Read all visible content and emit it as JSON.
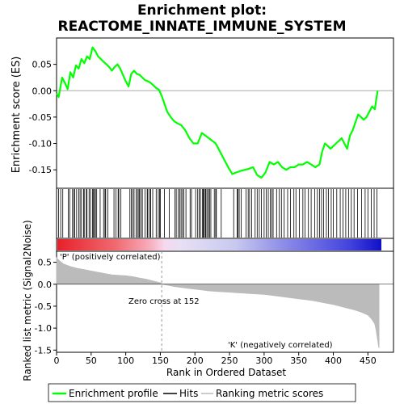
{
  "title_line1": "Enrichment plot:",
  "title_line2": "REACTOME_INNATE_IMMUNE_SYSTEM",
  "colors": {
    "enrichment": "#00ff00",
    "hits": "#000000",
    "metric_fill": "#bbbbbb",
    "pos_label": "#cc0000",
    "neg_label": "#0000cc",
    "zero_line": "#aaaaaa"
  },
  "chart_data": [
    {
      "type": "line",
      "ylabel": "Enrichment score (ES)",
      "xlim": [
        0,
        487
      ],
      "ylim": [
        -0.185,
        0.1
      ],
      "yticks": [
        0.05,
        0.0,
        -0.05,
        -0.1,
        -0.15
      ],
      "ytick_labels": [
        "0.05",
        "0.00",
        "-0.05",
        "-0.10",
        "-0.15"
      ],
      "series": [
        {
          "name": "Enrichment profile",
          "x": [
            0,
            3,
            8,
            12,
            16,
            20,
            24,
            28,
            32,
            36,
            40,
            44,
            48,
            52,
            56,
            60,
            64,
            68,
            72,
            76,
            80,
            84,
            88,
            92,
            96,
            100,
            104,
            108,
            112,
            116,
            120,
            124,
            128,
            132,
            136,
            140,
            144,
            148,
            152,
            156,
            160,
            165,
            170,
            175,
            180,
            186,
            192,
            198,
            204,
            210,
            215,
            220,
            225,
            230,
            236,
            242,
            248,
            254,
            260,
            266,
            272,
            278,
            284,
            290,
            296,
            302,
            308,
            314,
            320,
            326,
            332,
            338,
            344,
            350,
            356,
            362,
            368,
            374,
            380,
            384,
            388,
            392,
            396,
            400,
            404,
            408,
            412,
            416,
            420,
            424,
            428,
            432,
            436,
            440,
            444,
            448,
            452,
            456,
            460,
            464
          ],
          "y": [
            -0.005,
            -0.012,
            0.025,
            0.015,
            0.003,
            0.035,
            0.025,
            0.048,
            0.042,
            0.06,
            0.052,
            0.065,
            0.06,
            0.082,
            0.075,
            0.065,
            0.06,
            0.055,
            0.05,
            0.045,
            0.038,
            0.045,
            0.05,
            0.042,
            0.03,
            0.018,
            0.008,
            0.032,
            0.038,
            0.032,
            0.03,
            0.025,
            0.02,
            0.018,
            0.015,
            0.01,
            0.005,
            0.002,
            -0.01,
            -0.025,
            -0.04,
            -0.05,
            -0.058,
            -0.062,
            -0.065,
            -0.075,
            -0.09,
            -0.1,
            -0.1,
            -0.08,
            -0.085,
            -0.09,
            -0.095,
            -0.1,
            -0.115,
            -0.13,
            -0.145,
            -0.158,
            -0.155,
            -0.152,
            -0.15,
            -0.148,
            -0.145,
            -0.16,
            -0.165,
            -0.155,
            -0.135,
            -0.14,
            -0.135,
            -0.145,
            -0.15,
            -0.145,
            -0.145,
            -0.14,
            -0.14,
            -0.135,
            -0.14,
            -0.145,
            -0.14,
            -0.115,
            -0.1,
            -0.105,
            -0.11,
            -0.105,
            -0.1,
            -0.095,
            -0.09,
            -0.1,
            -0.11,
            -0.085,
            -0.075,
            -0.06,
            -0.045,
            -0.05,
            -0.055,
            -0.05,
            -0.04,
            -0.03,
            -0.035,
            0.0
          ]
        }
      ]
    },
    {
      "type": "scatter",
      "label": "Hits",
      "hits": [
        3,
        6,
        9,
        17,
        19,
        23,
        25,
        26,
        29,
        32,
        34,
        36,
        39,
        40,
        43,
        44,
        47,
        49,
        52,
        53,
        55,
        56,
        58,
        63,
        68,
        70,
        71,
        74,
        83,
        86,
        89,
        90,
        93,
        106,
        108,
        110,
        112,
        115,
        117,
        119,
        120,
        122,
        124,
        128,
        131,
        132,
        135,
        136,
        139,
        144,
        147,
        149,
        150,
        156,
        163,
        171,
        173,
        176,
        178,
        180,
        182,
        184,
        187,
        193,
        195,
        201,
        204,
        206,
        208,
        211,
        212,
        213,
        215,
        216,
        218,
        220,
        221,
        223,
        228,
        230,
        231,
        238,
        256,
        261,
        262,
        264,
        267,
        274,
        277,
        279,
        282,
        287,
        290,
        293,
        296,
        300,
        303,
        306,
        309,
        311,
        313,
        318,
        322,
        325,
        329,
        334,
        338,
        343,
        346,
        351,
        356,
        359,
        364,
        368,
        373,
        377,
        380,
        383,
        386,
        390,
        393,
        397,
        400,
        405,
        410,
        414,
        418,
        422,
        426,
        430,
        435,
        441,
        446,
        450,
        455,
        459,
        463
      ]
    },
    {
      "type": "area",
      "ylabel": "Ranked list metric (Signal2Noise)",
      "xlabel": "Rank in Ordered Dataset",
      "xlim": [
        0,
        487
      ],
      "ylim": [
        -1.55,
        0.75
      ],
      "xticks": [
        0,
        50,
        100,
        150,
        200,
        250,
        300,
        350,
        400,
        450
      ],
      "yticks": [
        0.5,
        0.0,
        -0.5,
        -1.0,
        -1.5
      ],
      "ytick_labels": [
        "0.5",
        "0.0",
        "-0.5",
        "-1.0",
        "-1.5"
      ],
      "x": [
        0,
        5,
        10,
        20,
        30,
        40,
        50,
        60,
        70,
        80,
        90,
        100,
        110,
        120,
        130,
        140,
        150,
        152,
        160,
        170,
        180,
        190,
        200,
        210,
        220,
        230,
        240,
        250,
        260,
        270,
        280,
        290,
        300,
        310,
        320,
        330,
        340,
        350,
        360,
        370,
        380,
        390,
        400,
        410,
        420,
        430,
        440,
        450,
        455,
        460,
        462,
        464,
        466
      ],
      "y": [
        0.6,
        0.52,
        0.46,
        0.4,
        0.36,
        0.33,
        0.3,
        0.27,
        0.24,
        0.21,
        0.2,
        0.19,
        0.17,
        0.14,
        0.11,
        0.07,
        0.03,
        0.0,
        -0.02,
        -0.05,
        -0.07,
        -0.09,
        -0.11,
        -0.13,
        -0.15,
        -0.16,
        -0.17,
        -0.18,
        -0.19,
        -0.2,
        -0.21,
        -0.22,
        -0.23,
        -0.25,
        -0.27,
        -0.29,
        -0.31,
        -0.33,
        -0.35,
        -0.37,
        -0.4,
        -0.43,
        -0.46,
        -0.5,
        -0.54,
        -0.58,
        -0.63,
        -0.7,
        -0.78,
        -0.9,
        -1.05,
        -1.25,
        -1.45
      ],
      "zero_cross_label": "Zero cross at 152",
      "pos_label": "'P' (positively correlated)",
      "neg_label": "'K' (negatively correlated)"
    }
  ],
  "legend": {
    "items": [
      {
        "label": "Enrichment profile",
        "color": "#00ff00"
      },
      {
        "label": "Hits",
        "color": "#000000"
      },
      {
        "label": "Ranking metric scores",
        "color": "#bbbbbb"
      }
    ]
  }
}
